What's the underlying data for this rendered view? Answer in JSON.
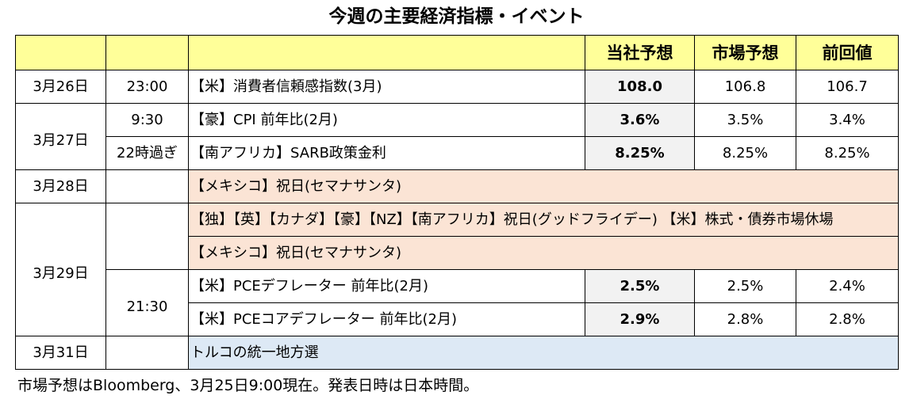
{
  "title": "今週の主要経済指標・イベント",
  "headers": {
    "date": "",
    "time": "",
    "event": "",
    "forecast_ours": "当社予想",
    "forecast_market": "市場予想",
    "previous": "前回値"
  },
  "rows": [
    {
      "date": "3月26日",
      "time": "23:00",
      "event": "【米】消費者信頼感指数(3月)",
      "ours": "108.0",
      "market": "106.8",
      "prev": "106.7"
    },
    {
      "date": "3月27日",
      "time": "9:30",
      "event": "【豪】CPI 前年比(2月)",
      "ours": "3.6%",
      "market": "3.5%",
      "prev": "3.4%"
    },
    {
      "date": "",
      "time": "22時過ぎ",
      "event": "【南アフリカ】SARB政策金利",
      "ours": "8.25%",
      "market": "8.25%",
      "prev": "8.25%"
    },
    {
      "date": "3月28日",
      "time": "",
      "event": "【メキシコ】祝日(セマナサンタ)"
    },
    {
      "date": "3月29日",
      "time": "",
      "event": "【独】【英】【カナダ】【豪】【NZ】【南アフリカ】祝日(グッドフライデー) 【米】株式・債券市場休場"
    },
    {
      "date": "",
      "time": "",
      "event": "【メキシコ】祝日(セマナサンタ)"
    },
    {
      "date": "",
      "time": "21:30",
      "event": "【米】PCEデフレーター 前年比(2月)",
      "ours": "2.5%",
      "market": "2.5%",
      "prev": "2.4%"
    },
    {
      "date": "",
      "time": "",
      "event": "【米】PCEコアデフレーター 前年比(2月)",
      "ours": "2.9%",
      "market": "2.8%",
      "prev": "2.8%"
    },
    {
      "date": "3月31日",
      "time": "",
      "event": "トルコの統一地方選"
    }
  ],
  "footnote": "市場予想はBloomberg、3月25日9:00現在。発表日時は日本時間。",
  "colors": {
    "header_bg": "#ffff99",
    "holiday_bg": "#fbe4d5",
    "forecast_bg": "#f2f2f2",
    "election_bg": "#dde9f5"
  }
}
